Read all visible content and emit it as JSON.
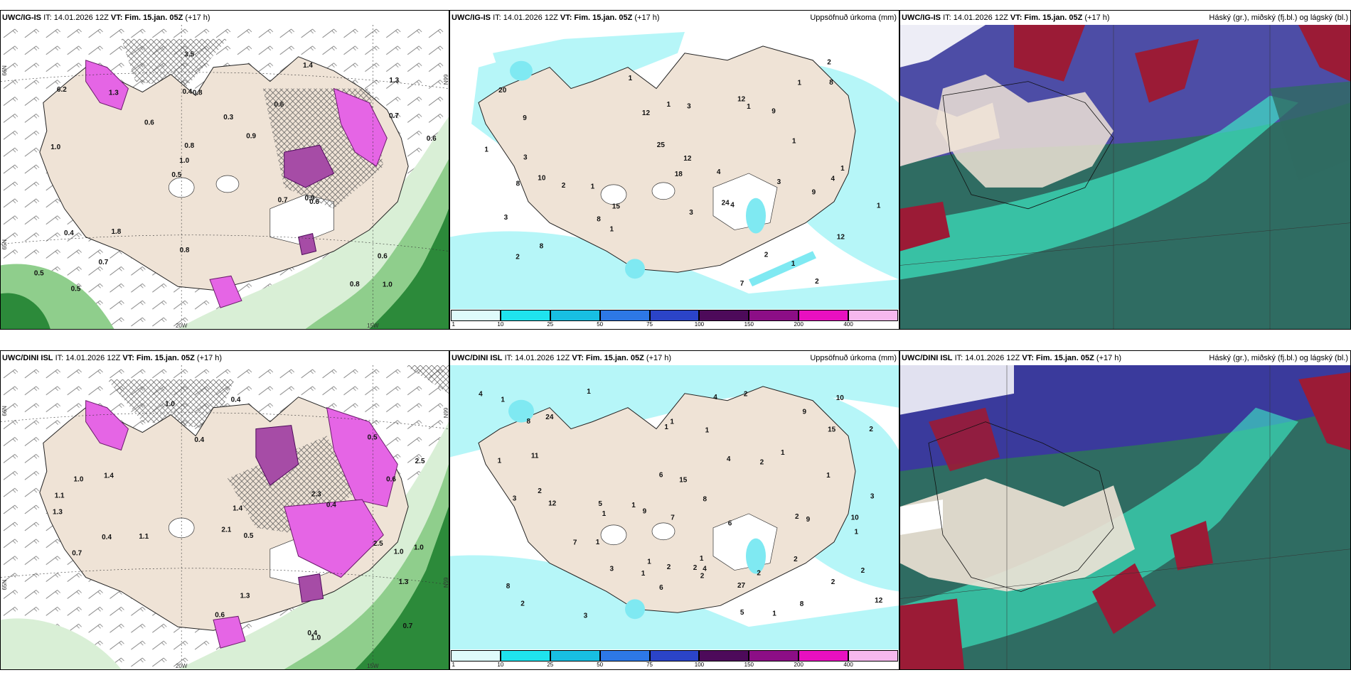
{
  "rows": [
    {
      "model": "UWC/IG-IS",
      "init": "IT: 14.01.2026 12Z",
      "valid": "VT: Fim. 15.jan. 05Z",
      "lead": "(+17 h)",
      "precip_title": "Uppsöfnuð úrkoma (mm)",
      "cloud_title": "Háský (gr.), miðský (fj.bl.) og lágský (bl.)",
      "wind_map": {
        "lat_labels": [
          "66N",
          "65N",
          "66N"
        ],
        "lon_labels": [
          "20W",
          "15W"
        ],
        "values": [
          "1.0",
          "1.0",
          "1.3",
          "0.5",
          "0.6",
          "0.5",
          "0.4",
          "0.3",
          "0.4",
          "0.6",
          "0.5",
          "0.7",
          "0.8",
          "0.9",
          "0.6",
          "6.2",
          "3.5",
          "0.6",
          "0.7",
          "0.7",
          "1.0",
          "0.8",
          "0.8",
          "1.3",
          "1.4",
          "1.8",
          "0.8",
          "0.6",
          "0.9"
        ]
      },
      "precip_map": {
        "values": [
          "2",
          "10",
          "24",
          "20",
          "12",
          "9",
          "8",
          "1",
          "9",
          "1",
          "1",
          "1",
          "1",
          "1",
          "4",
          "3",
          "3",
          "12",
          "1",
          "2",
          "2",
          "3",
          "1",
          "1",
          "1",
          "3",
          "2",
          "18",
          "25",
          "8",
          "4",
          "8",
          "8",
          "12",
          "12",
          "9",
          "4",
          "2",
          "1",
          "7",
          "15",
          "3"
        ]
      }
    },
    {
      "model": "UWC/DINI ISL",
      "init": "IT: 14.01.2026 12Z",
      "valid": "VT: Fim. 15.jan. 05Z",
      "lead": "(+17 h)",
      "precip_title": "Uppsöfnuð úrkoma (mm)",
      "cloud_title": "Háský (gr.), miðský (fj.bl.) og lágský (bl.)",
      "wind_map": {
        "lat_labels": [
          "66N",
          "65N",
          "66N",
          "65N"
        ],
        "lon_labels": [
          "20W",
          "15W"
        ],
        "values": [
          "1.3",
          "2.5",
          "0.5",
          "0.6",
          "0.4",
          "0.4",
          "2.5",
          "0.4",
          "0.5",
          "0.6",
          "0.4",
          "2.3",
          "0.4",
          "1.0",
          "1.3",
          "1.0",
          "0.7",
          "1.0",
          "0.7",
          "1.1",
          "2.1",
          "1.4",
          "1.0",
          "1.1",
          "1.4",
          "1.0",
          "1.3"
        ]
      },
      "precip_map": {
        "values": [
          "2",
          "2",
          "1",
          "4",
          "2",
          "2",
          "1",
          "12",
          "24",
          "27",
          "2",
          "5",
          "2",
          "2",
          "1",
          "2",
          "1",
          "15",
          "3",
          "1",
          "2",
          "5",
          "1",
          "1",
          "1",
          "1",
          "1",
          "1",
          "1",
          "2",
          "4",
          "3",
          "4",
          "6",
          "12",
          "4",
          "6",
          "3",
          "1",
          "1",
          "1",
          "3",
          "1",
          "9",
          "6",
          "10",
          "11",
          "2",
          "8",
          "8",
          "7",
          "8",
          "8",
          "9",
          "7",
          "10",
          "9",
          "2",
          "15",
          "2"
        ]
      }
    }
  ],
  "colorbar": {
    "ticks": [
      "1",
      "10",
      "25",
      "50",
      "75",
      "100",
      "150",
      "200",
      "400"
    ],
    "colors": [
      "#dffbfb",
      "#1fe3ee",
      "#18bfe2",
      "#2d78e6",
      "#2b44c8",
      "#4d0a5a",
      "#8c0e86",
      "#e810c0",
      "#f6b8ee"
    ]
  },
  "colors": {
    "land": "#efe3d6",
    "wind_green_light": "#d9efd6",
    "wind_green_mid": "#8fce8c",
    "wind_green_dark": "#2c8a3a",
    "magenta": "#e565e5",
    "precip_cyan": "#b6f6f8",
    "cloud_high": "#3a3a9c",
    "cloud_mid": "#2f6c62",
    "cloud_low": "#3ef0c8",
    "cloud_red": "#9b1b36"
  }
}
